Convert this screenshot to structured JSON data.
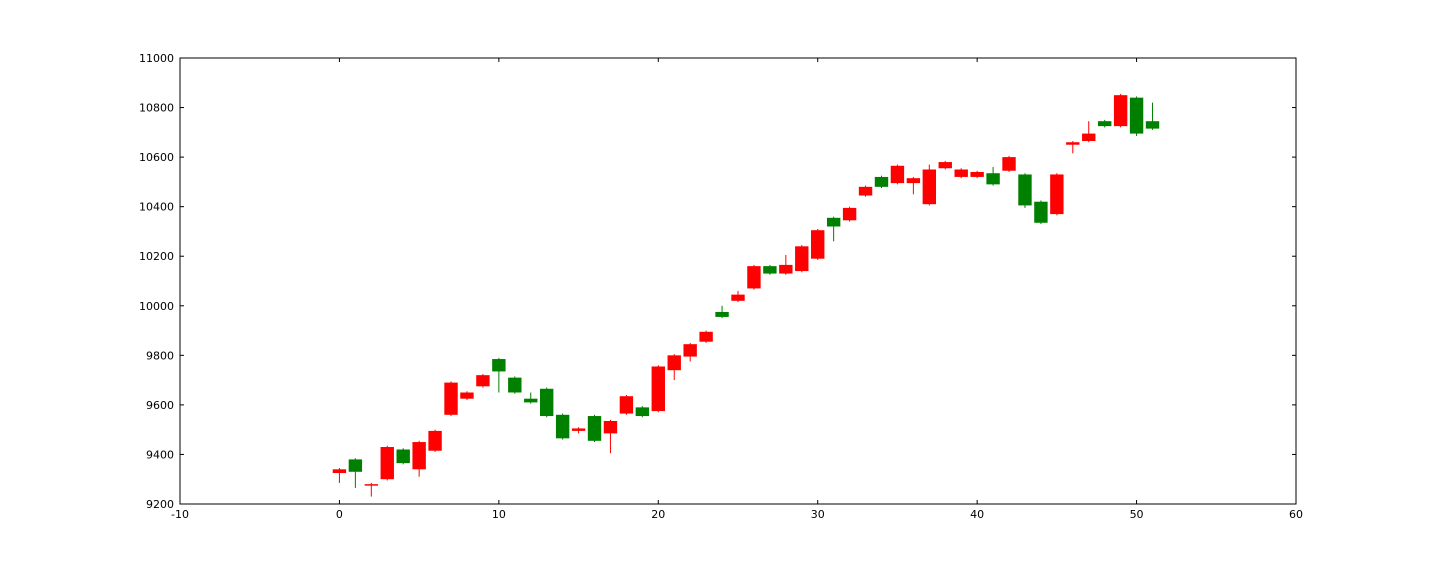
{
  "chart_data": {
    "type": "candlestick",
    "title": "",
    "xlabel": "",
    "ylabel": "",
    "xlim": [
      -10,
      60
    ],
    "ylim": [
      9200,
      11000
    ],
    "x_ticks": [
      -10,
      0,
      10,
      20,
      30,
      40,
      50,
      60
    ],
    "y_ticks": [
      9200,
      9400,
      9600,
      9800,
      10000,
      10200,
      10400,
      10600,
      10800,
      11000
    ],
    "grid": false,
    "colors": {
      "up": "#008000",
      "down": "#ff0000",
      "axis": "#000000"
    },
    "candles": [
      {
        "x": 0,
        "open": 9340,
        "close": 9325,
        "high": 9345,
        "low": 9285
      },
      {
        "x": 1,
        "open": 9330,
        "close": 9380,
        "high": 9385,
        "low": 9265
      },
      {
        "x": 2,
        "open": 9280,
        "close": 9275,
        "high": 9285,
        "low": 9230
      },
      {
        "x": 3,
        "open": 9430,
        "close": 9300,
        "high": 9435,
        "low": 9295
      },
      {
        "x": 4,
        "open": 9365,
        "close": 9420,
        "high": 9425,
        "low": 9360
      },
      {
        "x": 5,
        "open": 9450,
        "close": 9340,
        "high": 9455,
        "low": 9310
      },
      {
        "x": 6,
        "open": 9495,
        "close": 9415,
        "high": 9500,
        "low": 9410
      },
      {
        "x": 7,
        "open": 9690,
        "close": 9560,
        "high": 9695,
        "low": 9555
      },
      {
        "x": 8,
        "open": 9650,
        "close": 9625,
        "high": 9655,
        "low": 9620
      },
      {
        "x": 9,
        "open": 9720,
        "close": 9675,
        "high": 9725,
        "low": 9670
      },
      {
        "x": 10,
        "open": 9735,
        "close": 9785,
        "high": 9790,
        "low": 9650
      },
      {
        "x": 11,
        "open": 9650,
        "close": 9710,
        "high": 9715,
        "low": 9645
      },
      {
        "x": 12,
        "open": 9610,
        "close": 9625,
        "high": 9650,
        "low": 9605
      },
      {
        "x": 13,
        "open": 9555,
        "close": 9665,
        "high": 9670,
        "low": 9550
      },
      {
        "x": 14,
        "open": 9465,
        "close": 9560,
        "high": 9565,
        "low": 9460
      },
      {
        "x": 15,
        "open": 9505,
        "close": 9495,
        "high": 9510,
        "low": 9485
      },
      {
        "x": 16,
        "open": 9455,
        "close": 9555,
        "high": 9560,
        "low": 9450
      },
      {
        "x": 17,
        "open": 9535,
        "close": 9485,
        "high": 9540,
        "low": 9405
      },
      {
        "x": 18,
        "open": 9635,
        "close": 9565,
        "high": 9640,
        "low": 9560
      },
      {
        "x": 19,
        "open": 9555,
        "close": 9590,
        "high": 9595,
        "low": 9550
      },
      {
        "x": 20,
        "open": 9755,
        "close": 9575,
        "high": 9760,
        "low": 9570
      },
      {
        "x": 21,
        "open": 9800,
        "close": 9740,
        "high": 9805,
        "low": 9700
      },
      {
        "x": 22,
        "open": 9845,
        "close": 9795,
        "high": 9850,
        "low": 9775
      },
      {
        "x": 23,
        "open": 9895,
        "close": 9855,
        "high": 9900,
        "low": 9850
      },
      {
        "x": 24,
        "open": 9955,
        "close": 9975,
        "high": 10000,
        "low": 9950
      },
      {
        "x": 25,
        "open": 10045,
        "close": 10020,
        "high": 10060,
        "low": 10015
      },
      {
        "x": 26,
        "open": 10160,
        "close": 10070,
        "high": 10165,
        "low": 10065
      },
      {
        "x": 27,
        "open": 10130,
        "close": 10160,
        "high": 10165,
        "low": 10125
      },
      {
        "x": 28,
        "open": 10165,
        "close": 10130,
        "high": 10205,
        "low": 10125
      },
      {
        "x": 29,
        "open": 10240,
        "close": 10140,
        "high": 10245,
        "low": 10135
      },
      {
        "x": 30,
        "open": 10305,
        "close": 10190,
        "high": 10310,
        "low": 10185
      },
      {
        "x": 31,
        "open": 10320,
        "close": 10355,
        "high": 10360,
        "low": 10260
      },
      {
        "x": 32,
        "open": 10395,
        "close": 10345,
        "high": 10400,
        "low": 10340
      },
      {
        "x": 33,
        "open": 10480,
        "close": 10445,
        "high": 10485,
        "low": 10440
      },
      {
        "x": 34,
        "open": 10480,
        "close": 10520,
        "high": 10525,
        "low": 10475
      },
      {
        "x": 35,
        "open": 10565,
        "close": 10495,
        "high": 10570,
        "low": 10490
      },
      {
        "x": 36,
        "open": 10515,
        "close": 10495,
        "high": 10520,
        "low": 10450
      },
      {
        "x": 37,
        "open": 10550,
        "close": 10410,
        "high": 10570,
        "low": 10405
      },
      {
        "x": 38,
        "open": 10580,
        "close": 10555,
        "high": 10585,
        "low": 10550
      },
      {
        "x": 39,
        "open": 10550,
        "close": 10520,
        "high": 10555,
        "low": 10515
      },
      {
        "x": 40,
        "open": 10540,
        "close": 10520,
        "high": 10545,
        "low": 10515
      },
      {
        "x": 41,
        "open": 10490,
        "close": 10535,
        "high": 10560,
        "low": 10485
      },
      {
        "x": 42,
        "open": 10600,
        "close": 10545,
        "high": 10605,
        "low": 10540
      },
      {
        "x": 43,
        "open": 10405,
        "close": 10530,
        "high": 10535,
        "low": 10395
      },
      {
        "x": 44,
        "open": 10335,
        "close": 10420,
        "high": 10425,
        "low": 10330
      },
      {
        "x": 45,
        "open": 10530,
        "close": 10370,
        "high": 10535,
        "low": 10365
      },
      {
        "x": 46,
        "open": 10660,
        "close": 10650,
        "high": 10665,
        "low": 10615
      },
      {
        "x": 47,
        "open": 10695,
        "close": 10665,
        "high": 10745,
        "low": 10660
      },
      {
        "x": 48,
        "open": 10725,
        "close": 10745,
        "high": 10750,
        "low": 10720
      },
      {
        "x": 49,
        "open": 10850,
        "close": 10725,
        "high": 10855,
        "low": 10720
      },
      {
        "x": 50,
        "open": 10695,
        "close": 10840,
        "high": 10845,
        "low": 10685
      },
      {
        "x": 51,
        "open": 10715,
        "close": 10745,
        "high": 10820,
        "low": 10710
      }
    ]
  }
}
